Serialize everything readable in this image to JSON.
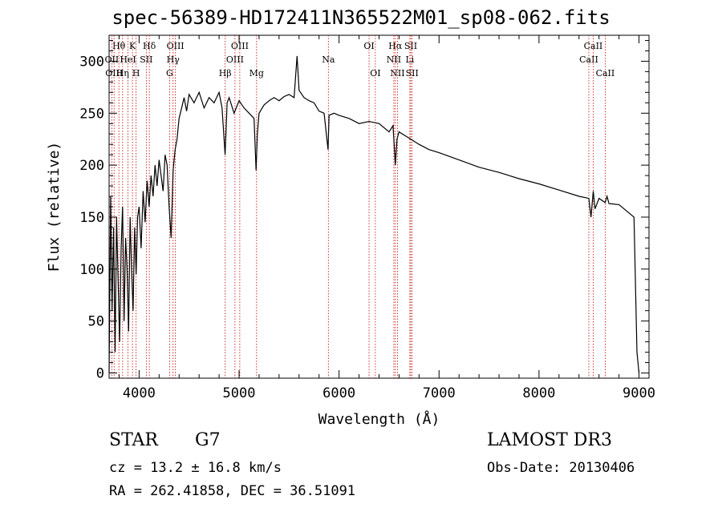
{
  "title": "spec-56389-HD172411N365522M01_sp08-062.fits",
  "info": {
    "object_class": "STAR",
    "subclass": "G7",
    "survey": "LAMOST DR3",
    "cz": "cz = 13.2 ± 16.8 km/s",
    "obs_date": "Obs-Date: 20130406",
    "radec": "RA = 262.41858, DEC =  36.51091"
  },
  "chart_data": {
    "type": "line",
    "title": "spec-56389-HD172411N365522M01_sp08-062.fits",
    "xlabel": "Wavelength (Å)",
    "ylabel": "Flux (relative)",
    "xlim": [
      3700,
      9100
    ],
    "ylim": [
      -5,
      325
    ],
    "xticks": [
      4000,
      5000,
      6000,
      7000,
      8000,
      9000
    ],
    "yticks": [
      0,
      50,
      100,
      150,
      200,
      250,
      300
    ],
    "line_color": "#000000",
    "marker_color": "#c00000",
    "spectrum": {
      "name": "flux",
      "x": [
        3700,
        3715,
        3730,
        3745,
        3760,
        3775,
        3790,
        3805,
        3820,
        3835,
        3850,
        3865,
        3880,
        3895,
        3910,
        3925,
        3940,
        3955,
        3970,
        3985,
        4000,
        4020,
        4040,
        4060,
        4080,
        4100,
        4120,
        4140,
        4160,
        4180,
        4200,
        4220,
        4240,
        4260,
        4280,
        4300,
        4320,
        4340,
        4360,
        4380,
        4400,
        4425,
        4450,
        4475,
        4500,
        4550,
        4600,
        4650,
        4700,
        4750,
        4800,
        4830,
        4860,
        4880,
        4900,
        4950,
        5000,
        5050,
        5100,
        5150,
        5170,
        5183,
        5200,
        5250,
        5300,
        5350,
        5400,
        5450,
        5500,
        5550,
        5580,
        5600,
        5650,
        5700,
        5750,
        5800,
        5850,
        5890,
        5900,
        5950,
        6000,
        6100,
        6200,
        6300,
        6400,
        6500,
        6540,
        6563,
        6580,
        6600,
        6700,
        6800,
        6900,
        7000,
        7200,
        7400,
        7600,
        7800,
        8000,
        8200,
        8400,
        8498,
        8520,
        8542,
        8560,
        8600,
        8662,
        8680,
        8700,
        8800,
        8900,
        8950,
        8980,
        9000
      ],
      "y": [
        0,
        170,
        60,
        140,
        20,
        150,
        90,
        30,
        120,
        160,
        50,
        130,
        100,
        40,
        150,
        100,
        60,
        140,
        95,
        150,
        160,
        120,
        175,
        145,
        185,
        160,
        190,
        170,
        200,
        180,
        205,
        190,
        175,
        210,
        200,
        160,
        130,
        195,
        215,
        225,
        245,
        255,
        265,
        252,
        268,
        260,
        270,
        255,
        265,
        260,
        270,
        255,
        210,
        260,
        265,
        250,
        262,
        255,
        250,
        245,
        195,
        230,
        250,
        258,
        262,
        265,
        262,
        266,
        268,
        265,
        305,
        272,
        265,
        262,
        260,
        252,
        250,
        215,
        248,
        250,
        248,
        245,
        240,
        242,
        240,
        232,
        238,
        200,
        225,
        232,
        226,
        220,
        215,
        212,
        205,
        198,
        193,
        187,
        182,
        176,
        170,
        168,
        150,
        175,
        158,
        168,
        164,
        170,
        163,
        162,
        154,
        150,
        20,
        0
      ]
    },
    "lines": [
      {
        "name": "Hθ",
        "x": 3798,
        "row": 1
      },
      {
        "name": "OII",
        "x": 3727,
        "row": 2
      },
      {
        "name": "OIII",
        "x": 3750,
        "row": 3
      },
      {
        "name": "K",
        "x": 3934,
        "row": 1
      },
      {
        "name": "HeI",
        "x": 3889,
        "row": 2
      },
      {
        "name": "Hη",
        "x": 3835,
        "row": 3
      },
      {
        "name": "SII",
        "x": 4072,
        "row": 2
      },
      {
        "name": "H",
        "x": 3970,
        "row": 3
      },
      {
        "name": "Hδ",
        "x": 4102,
        "row": 1
      },
      {
        "name": "OIII",
        "x": 4363,
        "row": 1
      },
      {
        "name": "Hγ",
        "x": 4340,
        "row": 2
      },
      {
        "name": "G",
        "x": 4305,
        "row": 3
      },
      {
        "name": "Hβ",
        "x": 4861,
        "row": 3
      },
      {
        "name": "OIII",
        "x": 5007,
        "row": 1
      },
      {
        "name": "OIII",
        "x": 4959,
        "row": 2
      },
      {
        "name": "Mg",
        "x": 5175,
        "row": 3
      },
      {
        "name": "Na",
        "x": 5893,
        "row": 2
      },
      {
        "name": "OI",
        "x": 6300,
        "row": 1
      },
      {
        "name": "OI",
        "x": 6363,
        "row": 3
      },
      {
        "name": "Hα",
        "x": 6563,
        "row": 1
      },
      {
        "name": "NII",
        "x": 6548,
        "row": 2
      },
      {
        "name": "NII",
        "x": 6584,
        "row": 3
      },
      {
        "name": "SII",
        "x": 6717,
        "row": 1
      },
      {
        "name": "Li",
        "x": 6708,
        "row": 2
      },
      {
        "name": "SII",
        "x": 6731,
        "row": 3
      },
      {
        "name": "CaII",
        "x": 8498,
        "row": 2
      },
      {
        "name": "CaII",
        "x": 8542,
        "row": 1
      },
      {
        "name": "CaII",
        "x": 8662,
        "row": 3
      }
    ]
  }
}
